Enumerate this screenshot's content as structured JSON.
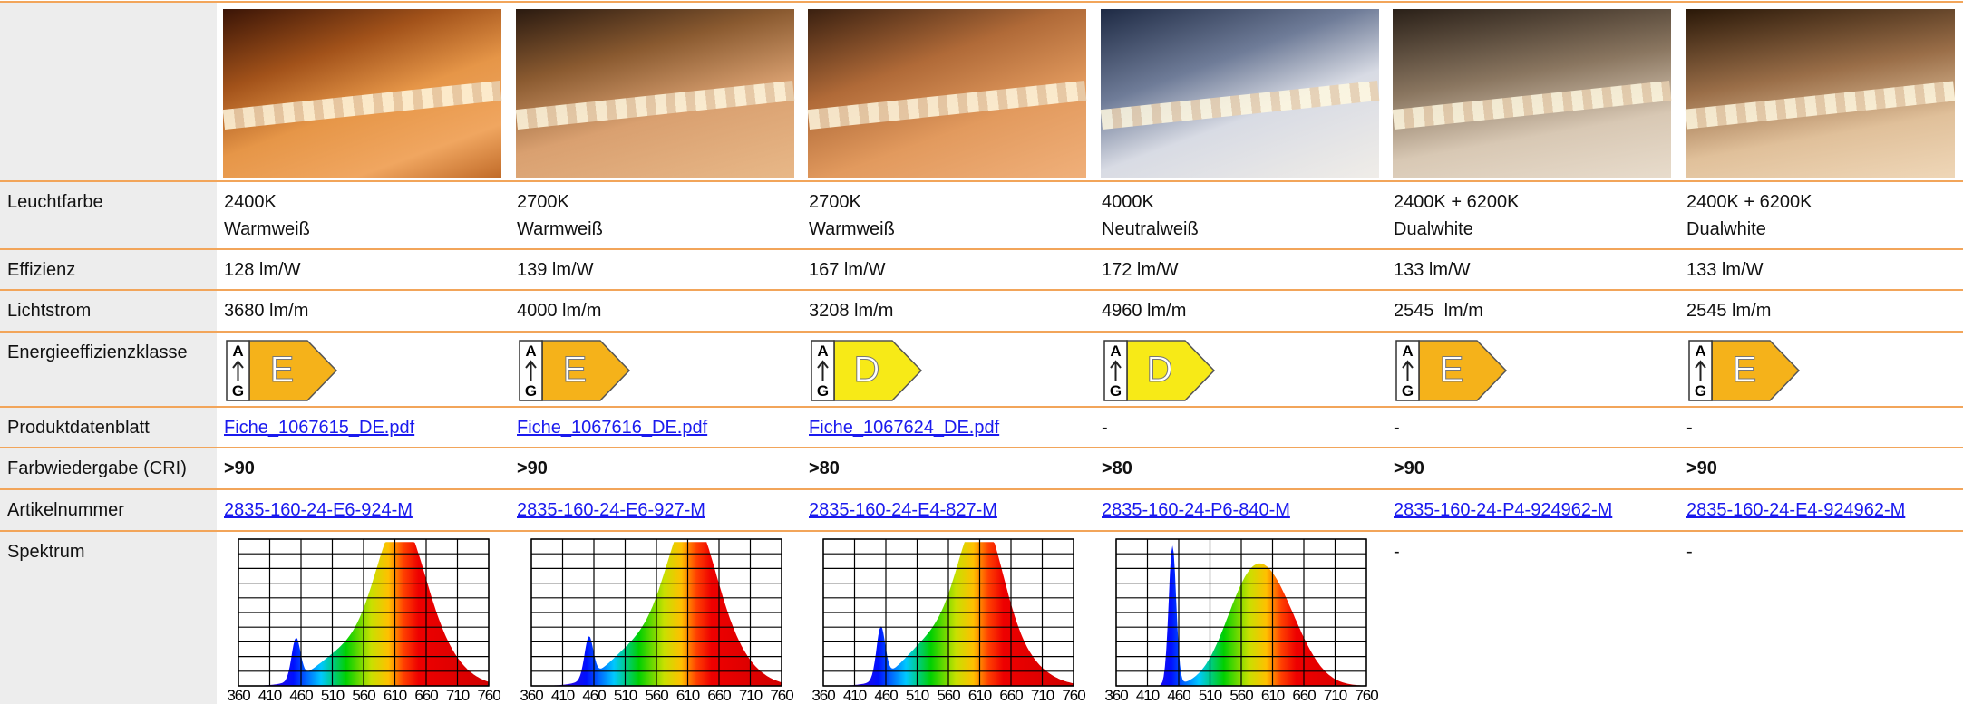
{
  "labels": {
    "color": "Leuchtfarbe",
    "efficiency": "Effizienz",
    "flux": "Lichtstrom",
    "energy": "Energieeffizienzklasse",
    "datasheet": "Produktdatenblatt",
    "cri": "Farbwiedergabe (CRI)",
    "article": "Artikelnummer",
    "spectrum": "Spektrum"
  },
  "energy_scale": {
    "top": "A",
    "bottom": "G"
  },
  "spectrum_ticks": [
    360,
    410,
    460,
    510,
    560,
    610,
    660,
    710,
    760
  ],
  "products": [
    {
      "cct": "2400K",
      "color": "Warmweiß",
      "efficiency": "128 lm/W",
      "flux": "3680 lm/m",
      "energy_class": "E",
      "datasheet": "Fiche_1067615_DE.pdf",
      "cri": ">90",
      "article": "2835-160-24-E6-924-M"
    },
    {
      "cct": "2700K",
      "color": "Warmweiß",
      "efficiency": "139 lm/W",
      "flux": "4000 lm/m",
      "energy_class": "E",
      "datasheet": "Fiche_1067616_DE.pdf",
      "cri": ">90",
      "article": "2835-160-24-E6-927-M"
    },
    {
      "cct": "2700K",
      "color": "Warmweiß",
      "efficiency": "167 lm/W",
      "flux": "3208 lm/m",
      "energy_class": "D",
      "datasheet": "Fiche_1067624_DE.pdf",
      "cri": ">80",
      "article": "2835-160-24-E4-827-M"
    },
    {
      "cct": "4000K",
      "color": "Neutralweiß",
      "efficiency": "172 lm/W",
      "flux": "4960 lm/m",
      "energy_class": "D",
      "datasheet": "-",
      "cri": ">80",
      "article": "2835-160-24-P6-840-M"
    },
    {
      "cct": "2400K + 6200K",
      "color": "Dualwhite",
      "efficiency": "133 lm/W",
      "flux": "2545  lm/m",
      "energy_class": "E",
      "datasheet": "-",
      "cri": ">90",
      "article": "2835-160-24-P4-924962-M",
      "spectrum": "-"
    },
    {
      "cct": "2400K + 6200K",
      "color": "Dualwhite",
      "efficiency": "133 lm/W",
      "flux": "2545 lm/m",
      "energy_class": "E",
      "datasheet": "-",
      "cri": ">90",
      "article": "2835-160-24-E4-924962-M",
      "spectrum": "-"
    }
  ]
}
